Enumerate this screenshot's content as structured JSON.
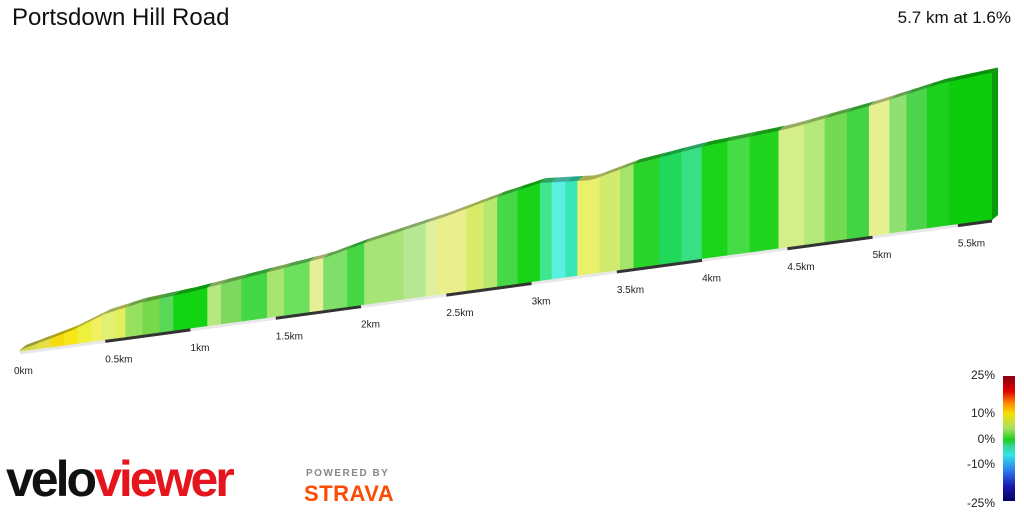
{
  "title": "Portsdown Hill Road",
  "summary": "5.7 km at 1.6%",
  "chart_data": {
    "type": "area",
    "style": "3D elevation profile coloured by gradient",
    "title": "Portsdown Hill Road",
    "distance_km": 5.7,
    "average_gradient_pct": 1.6,
    "x_ticks": [
      {
        "km": 0,
        "label": "0km"
      },
      {
        "km": 0.5,
        "label": "0.5km"
      },
      {
        "km": 1,
        "label": "1km"
      },
      {
        "km": 1.5,
        "label": "1.5km"
      },
      {
        "km": 2,
        "label": "2km"
      },
      {
        "km": 2.5,
        "label": "2.5km"
      },
      {
        "km": 3,
        "label": "3km"
      },
      {
        "km": 3.5,
        "label": "3.5km"
      },
      {
        "km": 4,
        "label": "4km"
      },
      {
        "km": 4.5,
        "label": "4.5km"
      },
      {
        "km": 5,
        "label": "5km"
      },
      {
        "km": 5.5,
        "label": "5.5km"
      }
    ],
    "profile": [
      {
        "km": 0.0,
        "elev": 0.0
      },
      {
        "km": 0.3,
        "elev": 6.0
      },
      {
        "km": 0.5,
        "elev": 12.0
      },
      {
        "km": 0.7,
        "elev": 15.0
      },
      {
        "km": 1.0,
        "elev": 17.0
      },
      {
        "km": 1.5,
        "elev": 22.0
      },
      {
        "km": 1.8,
        "elev": 25.0
      },
      {
        "km": 2.0,
        "elev": 29.0
      },
      {
        "km": 2.5,
        "elev": 37.0
      },
      {
        "km": 2.8,
        "elev": 43.0
      },
      {
        "km": 3.05,
        "elev": 47.0
      },
      {
        "km": 3.35,
        "elev": 45.0
      },
      {
        "km": 3.6,
        "elev": 50.0
      },
      {
        "km": 4.0,
        "elev": 54.0
      },
      {
        "km": 4.5,
        "elev": 57.0
      },
      {
        "km": 5.0,
        "elev": 63.0
      },
      {
        "km": 5.4,
        "elev": 69.0
      },
      {
        "km": 5.7,
        "elev": 71.0
      }
    ],
    "segments": [
      {
        "from": 0.0,
        "to": 0.1,
        "color": "#d6d94a"
      },
      {
        "from": 0.1,
        "to": 0.18,
        "color": "#e4e044"
      },
      {
        "from": 0.18,
        "to": 0.26,
        "color": "#f4dc10"
      },
      {
        "from": 0.26,
        "to": 0.34,
        "color": "#f8e618"
      },
      {
        "from": 0.34,
        "to": 0.42,
        "color": "#eef040"
      },
      {
        "from": 0.42,
        "to": 0.48,
        "color": "#f0f060"
      },
      {
        "from": 0.48,
        "to": 0.56,
        "color": "#dff072"
      },
      {
        "from": 0.56,
        "to": 0.62,
        "color": "#e4ee5e"
      },
      {
        "from": 0.62,
        "to": 0.72,
        "color": "#98e060"
      },
      {
        "from": 0.72,
        "to": 0.82,
        "color": "#76d84a"
      },
      {
        "from": 0.82,
        "to": 0.9,
        "color": "#5ad85a"
      },
      {
        "from": 0.9,
        "to": 1.1,
        "color": "#12d412"
      },
      {
        "from": 1.1,
        "to": 1.18,
        "color": "#b6e880"
      },
      {
        "from": 1.18,
        "to": 1.3,
        "color": "#7ed860"
      },
      {
        "from": 1.3,
        "to": 1.45,
        "color": "#44d844"
      },
      {
        "from": 1.45,
        "to": 1.55,
        "color": "#a8e470"
      },
      {
        "from": 1.55,
        "to": 1.7,
        "color": "#6ee060"
      },
      {
        "from": 1.7,
        "to": 1.78,
        "color": "#e6ee98"
      },
      {
        "from": 1.78,
        "to": 1.92,
        "color": "#7ee068"
      },
      {
        "from": 1.92,
        "to": 2.02,
        "color": "#46d646"
      },
      {
        "from": 2.02,
        "to": 2.25,
        "color": "#a6e478"
      },
      {
        "from": 2.25,
        "to": 2.38,
        "color": "#b6e892"
      },
      {
        "from": 2.38,
        "to": 2.45,
        "color": "#dff09c"
      },
      {
        "from": 2.45,
        "to": 2.62,
        "color": "#eaee8c"
      },
      {
        "from": 2.62,
        "to": 2.72,
        "color": "#d8ec6a"
      },
      {
        "from": 2.72,
        "to": 2.8,
        "color": "#b6e870"
      },
      {
        "from": 2.8,
        "to": 2.92,
        "color": "#46d846"
      },
      {
        "from": 2.92,
        "to": 3.05,
        "color": "#18d418"
      },
      {
        "from": 3.05,
        "to": 3.12,
        "color": "#3fe68c"
      },
      {
        "from": 3.12,
        "to": 3.2,
        "color": "#5af0e0"
      },
      {
        "from": 3.2,
        "to": 3.27,
        "color": "#38e6b6"
      },
      {
        "from": 3.27,
        "to": 3.4,
        "color": "#e8f06c"
      },
      {
        "from": 3.4,
        "to": 3.52,
        "color": "#d2ea6e"
      },
      {
        "from": 3.52,
        "to": 3.6,
        "color": "#a4e46a"
      },
      {
        "from": 3.6,
        "to": 3.75,
        "color": "#2ad42a"
      },
      {
        "from": 3.75,
        "to": 3.88,
        "color": "#22d85a"
      },
      {
        "from": 3.88,
        "to": 4.0,
        "color": "#38e082"
      },
      {
        "from": 4.0,
        "to": 4.15,
        "color": "#1ad41a"
      },
      {
        "from": 4.15,
        "to": 4.28,
        "color": "#46dc46"
      },
      {
        "from": 4.28,
        "to": 4.45,
        "color": "#20d420"
      },
      {
        "from": 4.45,
        "to": 4.6,
        "color": "#d4ee8a"
      },
      {
        "from": 4.6,
        "to": 4.72,
        "color": "#b4e878"
      },
      {
        "from": 4.72,
        "to": 4.85,
        "color": "#74da52"
      },
      {
        "from": 4.85,
        "to": 4.98,
        "color": "#42d442"
      },
      {
        "from": 4.98,
        "to": 5.1,
        "color": "#e6f090"
      },
      {
        "from": 5.1,
        "to": 5.2,
        "color": "#8ee070"
      },
      {
        "from": 5.2,
        "to": 5.32,
        "color": "#4cd44c"
      },
      {
        "from": 5.32,
        "to": 5.45,
        "color": "#1ed01e"
      },
      {
        "from": 5.45,
        "to": 5.7,
        "color": "#0ccc0c"
      }
    ],
    "gradient_scale": {
      "labels": [
        {
          "value": 25,
          "label": "25%"
        },
        {
          "value": 10,
          "label": "10%"
        },
        {
          "value": 0,
          "label": "0%"
        },
        {
          "value": -10,
          "label": "-10%"
        },
        {
          "value": -25,
          "label": "-25%"
        }
      ]
    }
  },
  "branding": {
    "logo_part1": "velo",
    "logo_part2": "viewer",
    "powered_by": "POWERED BY",
    "partner": "STRAVA"
  }
}
